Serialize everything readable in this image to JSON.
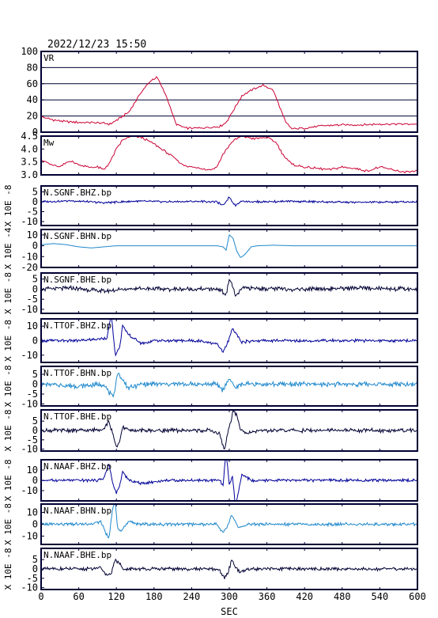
{
  "header": {
    "datetime": "2022/12/23 15:50"
  },
  "xaxis": {
    "label": "SEC",
    "min": 0,
    "max": 600,
    "ticks": [
      0,
      60,
      120,
      180,
      240,
      300,
      360,
      420,
      480,
      540,
      600
    ]
  },
  "colors": {
    "vr": "#cc0033",
    "mw": "#cc0033",
    "frame": "#000033",
    "bhz": "#000099",
    "bhn": "#1e88cc",
    "bhe": "#000033"
  },
  "chart_data": [
    {
      "type": "line",
      "label": "VR",
      "ylim": [
        0,
        100
      ],
      "yticks": [
        0,
        20,
        40,
        60,
        80,
        100
      ],
      "grid": true,
      "color_key": "vr",
      "x": [
        0,
        20,
        40,
        60,
        80,
        100,
        110,
        125,
        140,
        160,
        175,
        185,
        200,
        215,
        230,
        250,
        270,
        285,
        295,
        305,
        320,
        340,
        355,
        370,
        380,
        390,
        400,
        420,
        450,
        480,
        510,
        540,
        570,
        600
      ],
      "y": [
        19,
        15,
        13,
        12,
        12,
        11,
        10,
        17,
        25,
        50,
        64,
        68,
        44,
        10,
        5,
        5,
        6,
        7,
        12,
        25,
        45,
        54,
        58,
        52,
        32,
        12,
        4,
        5,
        8,
        9,
        9,
        10,
        10,
        10
      ]
    },
    {
      "type": "line",
      "label": "Mw",
      "ylim": [
        3.0,
        4.5
      ],
      "yticks": [
        3.0,
        3.5,
        4.0,
        4.5
      ],
      "grid": false,
      "color_key": "mw",
      "x": [
        0,
        15,
        30,
        45,
        60,
        75,
        90,
        100,
        110,
        120,
        130,
        145,
        160,
        180,
        195,
        210,
        225,
        240,
        255,
        270,
        280,
        290,
        305,
        320,
        340,
        360,
        375,
        385,
        400,
        420,
        440,
        460,
        480,
        500,
        520,
        540,
        560,
        580,
        600
      ],
      "y": [
        3.6,
        3.4,
        3.3,
        3.55,
        3.4,
        3.3,
        3.3,
        3.2,
        3.5,
        4.0,
        4.35,
        4.5,
        4.45,
        4.2,
        3.95,
        3.7,
        3.4,
        3.3,
        3.25,
        3.2,
        3.3,
        3.8,
        4.3,
        4.5,
        4.4,
        4.45,
        4.25,
        3.8,
        3.4,
        3.3,
        3.25,
        3.2,
        3.3,
        3.25,
        3.15,
        3.3,
        3.2,
        3.1,
        3.15
      ]
    },
    {
      "type": "line",
      "label": "N.SGNF.BHZ.bp",
      "unit": "X 10E -8",
      "ylim": [
        -12,
        8
      ],
      "yticks": [
        5,
        0,
        -5,
        -10
      ],
      "color_key": "bhz",
      "noise": 0.6,
      "x": [
        0,
        50,
        100,
        150,
        200,
        250,
        280,
        290,
        300,
        305,
        310,
        320,
        340,
        400,
        500,
        600
      ],
      "y": [
        0,
        0.5,
        -0.5,
        0.3,
        0,
        0.2,
        0,
        -2,
        2.5,
        0,
        -1.8,
        0.4,
        0,
        0.2,
        -0.3,
        0
      ]
    },
    {
      "type": "line",
      "label": "N.SGNF.BHN.bp",
      "unit": "X 10E -4",
      "ylim": [
        -20,
        15
      ],
      "yticks": [
        10,
        0,
        -10,
        -20
      ],
      "color_key": "bhn",
      "noise": 0,
      "x": [
        0,
        20,
        40,
        60,
        80,
        100,
        120,
        150,
        200,
        250,
        280,
        290,
        295,
        300,
        306,
        312,
        318,
        325,
        335,
        345,
        370,
        400,
        600
      ],
      "y": [
        1,
        2,
        1,
        -1,
        -2,
        -1,
        0,
        0,
        0,
        0,
        0,
        -1,
        -4,
        10,
        7,
        -5,
        -11,
        -8,
        -1,
        0,
        0.5,
        0,
        0
      ]
    },
    {
      "type": "line",
      "label": "N.SGNF.BHE.bp",
      "unit": "X 10E -8",
      "ylim": [
        -12,
        8
      ],
      "yticks": [
        5,
        0,
        -5,
        -10
      ],
      "color_key": "bhe",
      "noise": 1.2,
      "x": [
        0,
        50,
        100,
        150,
        200,
        250,
        285,
        295,
        300,
        305,
        310,
        320,
        400,
        500,
        600
      ],
      "y": [
        0,
        0.5,
        -1,
        0.5,
        0,
        0,
        0,
        -3,
        5,
        2,
        -4,
        0.5,
        0,
        0.5,
        0
      ]
    },
    {
      "type": "line",
      "label": "N.TTOF.BHZ.bp",
      "unit": "X 10E -8",
      "ylim": [
        -15,
        15
      ],
      "yticks": [
        10,
        0,
        -10
      ],
      "color_key": "bhz",
      "noise": 1.2,
      "x": [
        0,
        60,
        90,
        105,
        112,
        118,
        125,
        130,
        140,
        160,
        180,
        200,
        250,
        280,
        290,
        297,
        305,
        312,
        320,
        340,
        400,
        500,
        600
      ],
      "y": [
        0,
        0,
        1,
        2,
        18,
        -10,
        -5,
        10,
        4,
        -2,
        0,
        0,
        0,
        -2,
        -8,
        -2,
        8,
        4,
        -1,
        0,
        0,
        0,
        0
      ]
    },
    {
      "type": "line",
      "label": "N.TTOF.BHN.bp",
      "unit": "X 10E -8",
      "ylim": [
        -11,
        9
      ],
      "yticks": [
        5,
        0,
        -5,
        -10
      ],
      "color_key": "bhn",
      "noise": 1.4,
      "x": [
        0,
        60,
        100,
        108,
        115,
        122,
        130,
        140,
        160,
        200,
        280,
        290,
        300,
        310,
        320,
        400,
        500,
        600
      ],
      "y": [
        0,
        -1,
        0,
        -4,
        -7,
        6,
        2,
        -2,
        0,
        0,
        0,
        -3,
        3,
        -2,
        0,
        0,
        0,
        0
      ]
    },
    {
      "type": "line",
      "label": "N.TTOF.BHE.bp",
      "unit": "X 10E -8",
      "ylim": [
        -11,
        11
      ],
      "yticks": [
        5,
        0,
        -5,
        -10
      ],
      "color_key": "bhe",
      "noise": 1.2,
      "x": [
        0,
        80,
        100,
        108,
        115,
        120,
        125,
        130,
        140,
        160,
        200,
        270,
        285,
        292,
        297,
        302,
        306,
        312,
        318,
        330,
        360,
        400,
        600
      ],
      "y": [
        0,
        0,
        1,
        5,
        -3,
        -9,
        -6,
        2,
        0,
        0,
        0,
        0,
        -2,
        -11,
        -2,
        4,
        11,
        8,
        0,
        -1,
        0,
        0,
        0
      ]
    },
    {
      "type": "line",
      "label": "N.NAAF.BHZ.bp",
      "unit": "X 10E -8",
      "ylim": [
        -20,
        20
      ],
      "yticks": [
        10,
        0,
        -10
      ],
      "color_key": "bhz",
      "noise": 1.5,
      "x": [
        0,
        90,
        100,
        108,
        115,
        120,
        125,
        130,
        140,
        160,
        200,
        270,
        285,
        290,
        295,
        300,
        305,
        310,
        315,
        320,
        330,
        340,
        360,
        400,
        600
      ],
      "y": [
        0,
        0,
        2,
        16,
        -5,
        -12,
        -6,
        8,
        0,
        -3,
        0,
        0,
        0,
        -5,
        28,
        -4,
        3,
        -25,
        -10,
        5,
        2,
        -1,
        0,
        0,
        0
      ]
    },
    {
      "type": "line",
      "label": "N.NAAF.BHN.bp",
      "unit": "X 10E -8",
      "ylim": [
        -17,
        17
      ],
      "yticks": [
        10,
        0,
        -10
      ],
      "color_key": "bhn",
      "noise": 1.5,
      "x": [
        0,
        80,
        95,
        100,
        108,
        113,
        118,
        122,
        128,
        140,
        160,
        200,
        280,
        290,
        298,
        303,
        308,
        315,
        330,
        400,
        600
      ],
      "y": [
        0,
        0,
        2,
        -3,
        -13,
        10,
        20,
        -3,
        -5,
        2,
        0,
        0,
        0,
        -7,
        -1,
        7,
        4,
        -3,
        0,
        0,
        0
      ]
    },
    {
      "type": "line",
      "label": "N.NAAF.BHE.bp",
      "unit": "X 10E -8",
      "ylim": [
        -11,
        11
      ],
      "yticks": [
        5,
        0,
        -5,
        -10
      ],
      "color_key": "bhe",
      "noise": 1.0,
      "x": [
        0,
        80,
        95,
        105,
        112,
        118,
        125,
        132,
        140,
        160,
        200,
        270,
        285,
        292,
        298,
        304,
        310,
        318,
        330,
        400,
        600
      ],
      "y": [
        0,
        0,
        1,
        -4,
        -2,
        5,
        3,
        -1,
        0,
        0,
        0,
        0,
        -1,
        -5,
        -2,
        5,
        1,
        -2,
        0,
        0,
        0
      ]
    }
  ]
}
